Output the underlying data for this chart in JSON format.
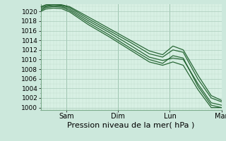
{
  "xlabel": "Pression niveau de la mer( hPa )",
  "bg_color": "#cce8dc",
  "plot_bg_color": "#d8f0e4",
  "grid_major_color": "#aaccbb",
  "grid_minor_color": "#c2ddd0",
  "line_color": "#1a5c28",
  "ylim": [
    999.5,
    1021.5
  ],
  "ytick_start": 1000,
  "ytick_end": 1020,
  "ytick_step": 2,
  "day_labels": [
    "Sam",
    "Dim",
    "Lun",
    "Mar"
  ],
  "day_positions": [
    0.25,
    0.75,
    1.25,
    1.75
  ],
  "xlim": [
    0.0,
    1.75
  ],
  "line_defs": [
    {
      "kx": [
        0,
        0.05,
        0.12,
        0.2,
        0.28,
        0.45,
        0.65,
        0.85,
        1.05,
        1.18,
        1.28,
        1.38,
        1.52,
        1.65,
        1.75
      ],
      "ky": [
        1020.5,
        1021.0,
        1021.2,
        1021.1,
        1020.5,
        1018.2,
        1015.8,
        1013.2,
        1010.5,
        1009.8,
        1010.3,
        1010.0,
        1005.0,
        1001.0,
        1000.5
      ]
    },
    {
      "kx": [
        0,
        0.05,
        0.12,
        0.2,
        0.28,
        0.45,
        0.65,
        0.85,
        1.05,
        1.18,
        1.28,
        1.38,
        1.52,
        1.65,
        1.75
      ],
      "ky": [
        1020.8,
        1021.2,
        1021.4,
        1021.3,
        1020.8,
        1018.6,
        1016.2,
        1013.8,
        1011.2,
        1010.5,
        1012.0,
        1011.5,
        1006.0,
        1002.0,
        1001.2
      ]
    },
    {
      "kx": [
        0,
        0.05,
        0.12,
        0.2,
        0.28,
        0.45,
        0.65,
        0.85,
        1.05,
        1.18,
        1.28,
        1.38,
        1.52,
        1.65,
        1.75
      ],
      "ky": [
        1020.2,
        1020.8,
        1021.0,
        1020.9,
        1020.2,
        1017.8,
        1015.3,
        1012.6,
        1010.0,
        1009.2,
        1010.8,
        1010.3,
        1004.5,
        1000.5,
        1000.0
      ]
    },
    {
      "kx": [
        0,
        0.05,
        0.12,
        0.2,
        0.28,
        0.45,
        0.65,
        0.85,
        1.05,
        1.18,
        1.28,
        1.38,
        1.52,
        1.65,
        1.75
      ],
      "ky": [
        1021.0,
        1021.4,
        1021.5,
        1021.4,
        1021.0,
        1019.0,
        1016.6,
        1014.2,
        1011.8,
        1011.0,
        1012.8,
        1012.0,
        1006.8,
        1002.5,
        1001.5
      ]
    },
    {
      "kx": [
        0,
        0.05,
        0.12,
        0.2,
        0.28,
        0.45,
        0.65,
        0.85,
        1.05,
        1.18,
        1.28,
        1.38,
        1.52,
        1.65,
        1.75
      ],
      "ky": [
        1020.0,
        1020.5,
        1020.7,
        1020.6,
        1019.9,
        1017.4,
        1014.9,
        1012.2,
        1009.5,
        1008.8,
        1009.5,
        1008.8,
        1003.8,
        1000.0,
        1000.0
      ]
    }
  ],
  "xlabel_fontsize": 8,
  "ytick_fontsize": 6.5,
  "xtick_fontsize": 7
}
